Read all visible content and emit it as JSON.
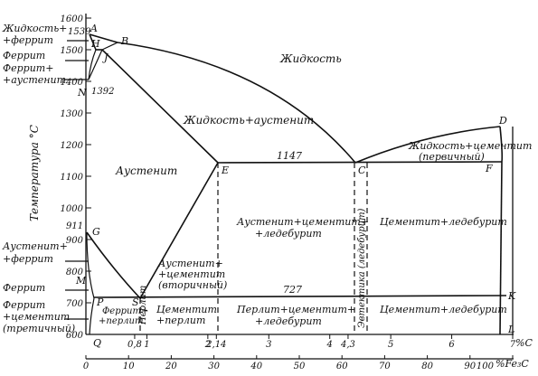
{
  "y_axis": {
    "title": "Температура °С",
    "ticks": [
      {
        "v": 1600,
        "t": "1600"
      },
      {
        "v": 1500,
        "t": "1500"
      },
      {
        "v": 1400,
        "t": "1400"
      },
      {
        "v": 1300,
        "t": "1300"
      },
      {
        "v": 1200,
        "t": "1200"
      },
      {
        "v": 1100,
        "t": "1100"
      },
      {
        "v": 1000,
        "t": "1000"
      },
      {
        "v": 900,
        "t": "900"
      },
      {
        "v": 800,
        "t": "800"
      },
      {
        "v": 700,
        "t": "700"
      },
      {
        "v": 600,
        "t": "600"
      }
    ],
    "special": [
      {
        "v": 1539,
        "t": "1539"
      },
      {
        "v": 1392,
        "t": "1392"
      },
      {
        "v": 911,
        "t": "911"
      }
    ]
  },
  "x_axis_c": {
    "unit": "%С",
    "ticks": [
      {
        "v": 0.8,
        "t": "0,8"
      },
      {
        "v": 1,
        "t": "1"
      },
      {
        "v": 2,
        "t": "2"
      },
      {
        "v": 2.14,
        "t": "2,14"
      },
      {
        "v": 3,
        "t": "3"
      },
      {
        "v": 4,
        "t": "4"
      },
      {
        "v": 4.3,
        "t": "4,3"
      },
      {
        "v": 5,
        "t": "5"
      },
      {
        "v": 6,
        "t": "6"
      },
      {
        "v": 7,
        "t": "7"
      }
    ],
    "origin_label": "Q"
  },
  "x_axis_fe3c": {
    "unit": "%Fe₃C",
    "ticks": [
      "0",
      "10",
      "20",
      "30",
      "40",
      "50",
      "60",
      "70",
      "80",
      "90",
      "100"
    ]
  },
  "points": {
    "A": "A",
    "H": "H",
    "B": "B",
    "J": "J",
    "N": "N",
    "D": "D",
    "E": "E",
    "C": "C",
    "F": "F",
    "G": "G",
    "P": "P",
    "S": "S",
    "K": "K",
    "L": "L",
    "M": "M"
  },
  "isotherms": {
    "eutectic": "1147",
    "eutectoid": "727"
  },
  "regions": {
    "liquid": "Жидкость",
    "liquid_austenite": "Жидкость+аустенит",
    "liquid_cementite": [
      "Жидкость+цементит",
      "(первичный)"
    ],
    "austenite": "Аустенит",
    "aus_cem_led": [
      "Аустенит+цементит+",
      "+ледебурит"
    ],
    "cem_led_upper": "Цементит+ледебурит",
    "aus_cem_sec": [
      "Аустенит+",
      "+цементит",
      "(вторичный)"
    ],
    "ferrite_perlite": [
      "Феррит+",
      "+перлит"
    ],
    "perlite": "Перлит",
    "cem_perlite": [
      "Цементит",
      "+перлит"
    ],
    "perlite_cem_led": [
      "Перлит+цементит+",
      "+ледебурит"
    ],
    "cem_led_lower": "Цементит+ледебурит",
    "eutectic_vertical": "Эвтектика (ледебурит)"
  },
  "side_labels": {
    "liquid_ferrite": [
      "Жидкость+",
      "+феррит"
    ],
    "ferrite_austenite": [
      "Феррит",
      "Феррит+",
      "+аустенит"
    ],
    "austenite_ferrite": [
      "Аустенит+",
      "+феррит"
    ],
    "ferrite": "Феррит",
    "ferrite_cementite": [
      "Феррит",
      "+цементит",
      "(третичный)"
    ]
  },
  "colors": {
    "ink": "#111111",
    "paper": "#ffffff"
  }
}
